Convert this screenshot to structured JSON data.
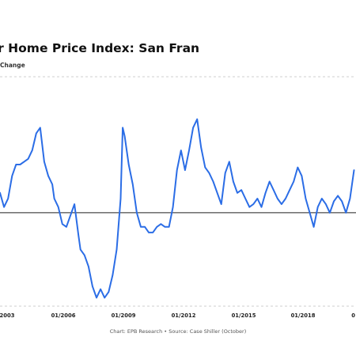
{
  "chart_data": {
    "type": "line",
    "title": "ller Home Price Index: San Fran",
    "subtitle": "ized Change",
    "x_tick_labels": [
      "2003",
      "01/2006",
      "01/2009",
      "01/2012",
      "01/2015",
      "01/2018",
      "0"
    ],
    "x_range": [
      2002.9,
      2020.6
    ],
    "y_range": [
      -0.33,
      0.48
    ],
    "baseline": 0,
    "grid": false,
    "line_color": "#2b6de6",
    "series": [
      {
        "x": [
          2002.9,
          2003.1,
          2003.3,
          2003.5,
          2003.7,
          2003.9,
          2004.1,
          2004.3,
          2004.5,
          2004.7,
          2004.9,
          2005.1,
          2005.3,
          2005.5,
          2005.6,
          2005.8,
          2006.0,
          2006.2,
          2006.4,
          2006.6,
          2006.8,
          2006.9,
          2007.1,
          2007.3,
          2007.5,
          2007.7,
          2007.9,
          2008.1,
          2008.3,
          2008.5,
          2008.7,
          2008.9,
          2009.0,
          2009.1,
          2009.3,
          2009.5,
          2009.7,
          2009.9,
          2010.1,
          2010.3,
          2010.5,
          2010.7,
          2010.9,
          2011.1,
          2011.3,
          2011.5,
          2011.7,
          2011.9,
          2012.1,
          2012.3,
          2012.5,
          2012.7,
          2012.9,
          2013.1,
          2013.3,
          2013.5,
          2013.7,
          2013.9,
          2014.1,
          2014.3,
          2014.5,
          2014.7,
          2014.9,
          2015.1,
          2015.3,
          2015.5,
          2015.7,
          2015.9,
          2016.1,
          2016.3,
          2016.5,
          2016.7,
          2016.9,
          2017.1,
          2017.3,
          2017.5,
          2017.7,
          2017.9,
          2018.1,
          2018.3,
          2018.5,
          2018.7,
          2018.9,
          2019.1,
          2019.3,
          2019.5,
          2019.7,
          2019.9,
          2020.1,
          2020.3,
          2020.5
        ],
        "y": [
          0.07,
          0.02,
          0.05,
          0.13,
          0.17,
          0.17,
          0.18,
          0.19,
          0.22,
          0.28,
          0.3,
          0.18,
          0.13,
          0.1,
          0.05,
          0.02,
          -0.04,
          -0.05,
          -0.01,
          0.03,
          -0.08,
          -0.13,
          -0.15,
          -0.19,
          -0.26,
          -0.3,
          -0.27,
          -0.3,
          -0.28,
          -0.22,
          -0.13,
          0.05,
          0.3,
          0.27,
          0.17,
          0.1,
          0.0,
          -0.05,
          -0.05,
          -0.07,
          -0.07,
          -0.05,
          -0.04,
          -0.05,
          -0.05,
          0.02,
          0.15,
          0.22,
          0.15,
          0.22,
          0.3,
          0.33,
          0.23,
          0.16,
          0.14,
          0.11,
          0.07,
          0.03,
          0.14,
          0.18,
          0.11,
          0.07,
          0.08,
          0.05,
          0.02,
          0.03,
          0.05,
          0.02,
          0.07,
          0.11,
          0.08,
          0.05,
          0.03,
          0.05,
          0.08,
          0.11,
          0.16,
          0.13,
          0.05,
          0.0,
          -0.05,
          0.02,
          0.05,
          0.03,
          0.0,
          0.04,
          0.06,
          0.04,
          0.0,
          0.05,
          0.15
        ]
      }
    ]
  },
  "caption": "Chart: EPB Research  •  Source: Case Shiller (October)"
}
